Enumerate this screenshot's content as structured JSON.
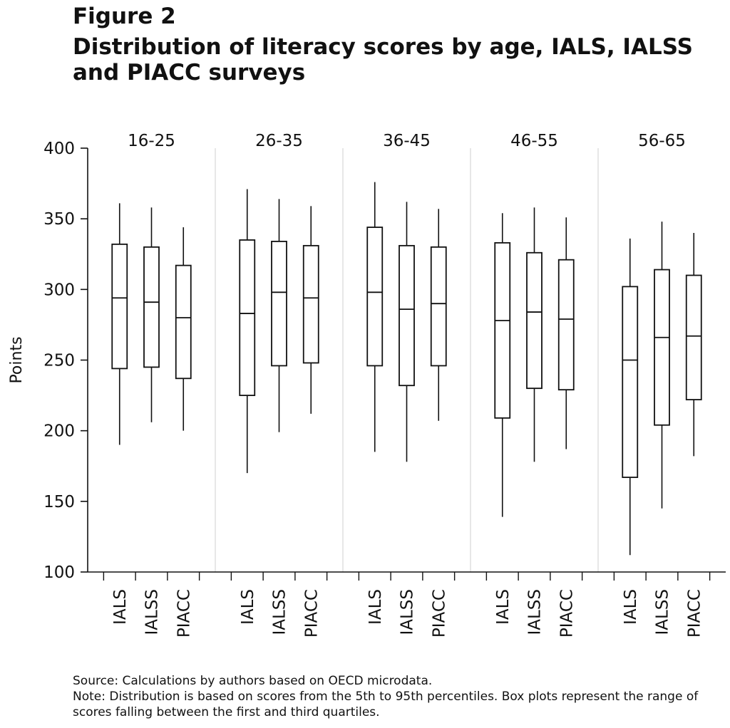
{
  "figure": {
    "label": "Figure 2",
    "title": "Distribution of literacy scores by age, IALS, IALSS and PIACC surveys"
  },
  "notes": {
    "source": "Source: Calculations by authors based on OECD microdata.",
    "note": "Note: Distribution is based on scores from the 5th to 95th percentiles. Box plots represent the range of scores falling between the first and third quartiles."
  },
  "chart_data": {
    "type": "boxplot",
    "ylabel": "Points",
    "ylim": [
      100,
      400
    ],
    "yticks": [
      100,
      150,
      200,
      250,
      300,
      350,
      400
    ],
    "grid": false,
    "groups": [
      {
        "name": "16-25",
        "boxes": [
          {
            "label": "IALS",
            "whisker_low": 190,
            "q1": 244,
            "median": 294,
            "q3": 332,
            "whisker_high": 361
          },
          {
            "label": "IALSS",
            "whisker_low": 206,
            "q1": 245,
            "median": 291,
            "q3": 330,
            "whisker_high": 358
          },
          {
            "label": "PIACC",
            "whisker_low": 200,
            "q1": 237,
            "median": 280,
            "q3": 317,
            "whisker_high": 344
          }
        ]
      },
      {
        "name": "26-35",
        "boxes": [
          {
            "label": "IALS",
            "whisker_low": 170,
            "q1": 225,
            "median": 283,
            "q3": 335,
            "whisker_high": 371
          },
          {
            "label": "IALSS",
            "whisker_low": 199,
            "q1": 246,
            "median": 298,
            "q3": 334,
            "whisker_high": 364
          },
          {
            "label": "PIACC",
            "whisker_low": 212,
            "q1": 248,
            "median": 294,
            "q3": 331,
            "whisker_high": 359
          }
        ]
      },
      {
        "name": "36-45",
        "boxes": [
          {
            "label": "IALS",
            "whisker_low": 185,
            "q1": 246,
            "median": 298,
            "q3": 344,
            "whisker_high": 376
          },
          {
            "label": "IALSS",
            "whisker_low": 178,
            "q1": 232,
            "median": 286,
            "q3": 331,
            "whisker_high": 362
          },
          {
            "label": "PIACC",
            "whisker_low": 207,
            "q1": 246,
            "median": 290,
            "q3": 330,
            "whisker_high": 357
          }
        ]
      },
      {
        "name": "46-55",
        "boxes": [
          {
            "label": "IALS",
            "whisker_low": 139,
            "q1": 209,
            "median": 278,
            "q3": 333,
            "whisker_high": 354
          },
          {
            "label": "IALSS",
            "whisker_low": 178,
            "q1": 230,
            "median": 284,
            "q3": 326,
            "whisker_high": 358
          },
          {
            "label": "PIACC",
            "whisker_low": 187,
            "q1": 229,
            "median": 279,
            "q3": 321,
            "whisker_high": 351
          }
        ]
      },
      {
        "name": "56-65",
        "boxes": [
          {
            "label": "IALS",
            "whisker_low": 112,
            "q1": 167,
            "median": 250,
            "q3": 302,
            "whisker_high": 336
          },
          {
            "label": "IALSS",
            "whisker_low": 145,
            "q1": 204,
            "median": 266,
            "q3": 314,
            "whisker_high": 348
          },
          {
            "label": "PIACC",
            "whisker_low": 182,
            "q1": 222,
            "median": 267,
            "q3": 310,
            "whisker_high": 340
          }
        ]
      }
    ]
  }
}
